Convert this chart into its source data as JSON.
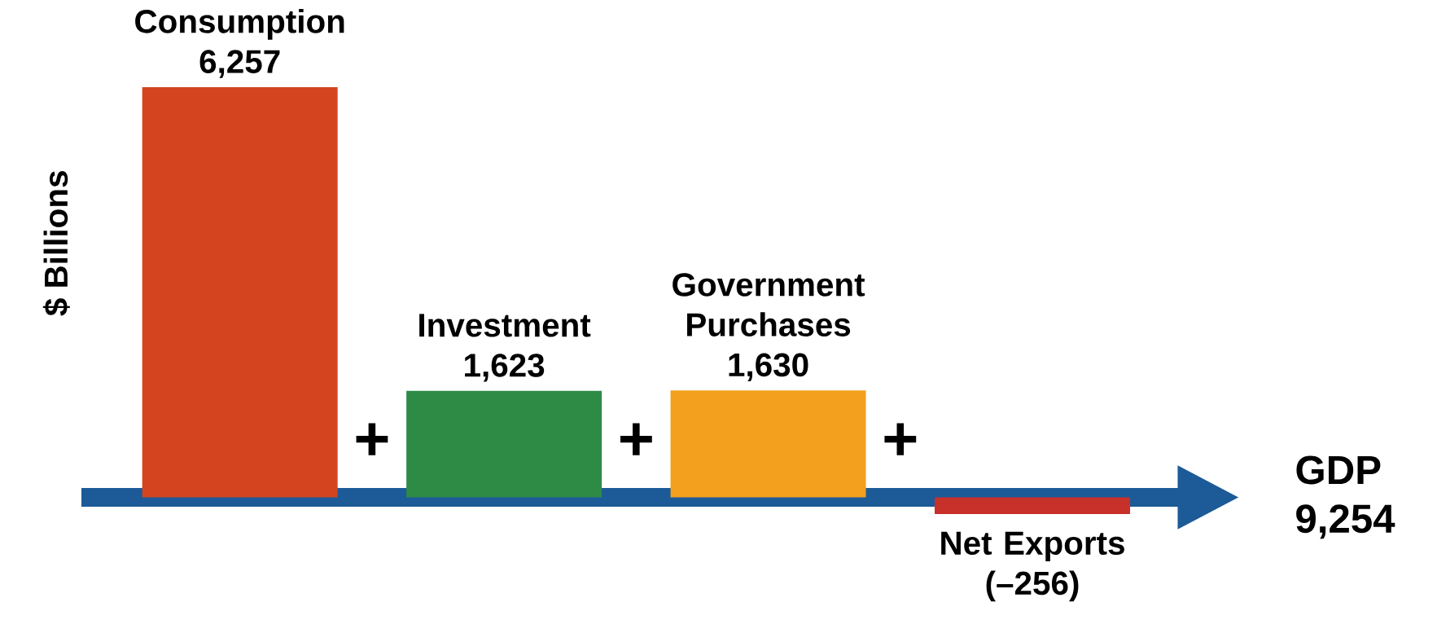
{
  "chart_data": {
    "type": "bar",
    "ylabel": "$ Billions",
    "categories": [
      "Consumption",
      "Investment",
      "Government Purchases",
      "Net Exports"
    ],
    "values": [
      6257,
      1623,
      1630,
      -256
    ],
    "value_labels": [
      "6,257",
      "1,623",
      "1,630",
      "(–256)"
    ],
    "colors": [
      "#d4451f",
      "#2e8b46",
      "#f2a01e",
      "#c8302a"
    ],
    "annotations": [
      "+",
      "+",
      "+",
      "GDP 9,254"
    ]
  }
}
